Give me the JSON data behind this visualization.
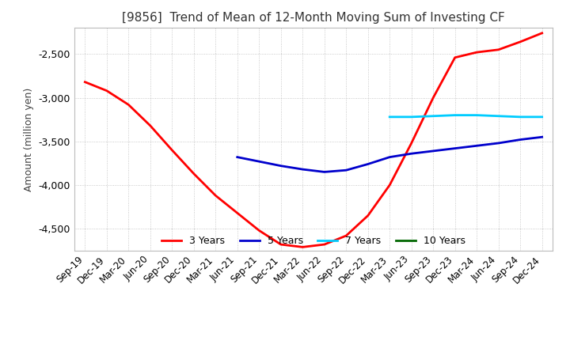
{
  "title": "[9856]  Trend of Mean of 12-Month Moving Sum of Investing CF",
  "ylabel": "Amount (million yen)",
  "ylim": [
    -4750,
    -2200
  ],
  "yticks": [
    -4500,
    -4000,
    -3500,
    -3000,
    -2500
  ],
  "background_color": "#ffffff",
  "grid_color": "#aaaaaa",
  "legend_labels": [
    "3 Years",
    "5 Years",
    "7 Years",
    "10 Years"
  ],
  "legend_colors": [
    "#ff0000",
    "#0000cc",
    "#00ccff",
    "#006600"
  ],
  "x_labels": [
    "Sep-19",
    "Dec-19",
    "Mar-20",
    "Jun-20",
    "Sep-20",
    "Dec-20",
    "Mar-21",
    "Jun-21",
    "Sep-21",
    "Dec-21",
    "Mar-22",
    "Jun-22",
    "Sep-22",
    "Dec-22",
    "Mar-23",
    "Jun-23",
    "Sep-23",
    "Dec-23",
    "Mar-24",
    "Jun-24",
    "Sep-24",
    "Dec-24"
  ],
  "series_3y": [
    -2820,
    -2920,
    -3080,
    -3320,
    -3600,
    -3870,
    -4120,
    -4320,
    -4520,
    -4680,
    -4710,
    -4680,
    -4580,
    -4350,
    -4000,
    -3520,
    -3000,
    -2540,
    -2480,
    -2450,
    -2360,
    -2260
  ],
  "series_5y": [
    null,
    null,
    null,
    null,
    null,
    null,
    null,
    -3680,
    -3730,
    -3780,
    -3820,
    -3850,
    -3830,
    -3760,
    -3680,
    -3640,
    -3610,
    -3580,
    -3550,
    -3520,
    -3480,
    -3450
  ],
  "series_7y": [
    null,
    null,
    null,
    null,
    null,
    null,
    null,
    null,
    null,
    null,
    null,
    null,
    null,
    null,
    -3220,
    -3220,
    -3210,
    -3200,
    -3200,
    -3210,
    -3220,
    -3220
  ],
  "series_10y": [
    null,
    null,
    null,
    null,
    null,
    null,
    null,
    null,
    null,
    null,
    null,
    null,
    null,
    null,
    null,
    null,
    null,
    null,
    null,
    null,
    null,
    null
  ]
}
